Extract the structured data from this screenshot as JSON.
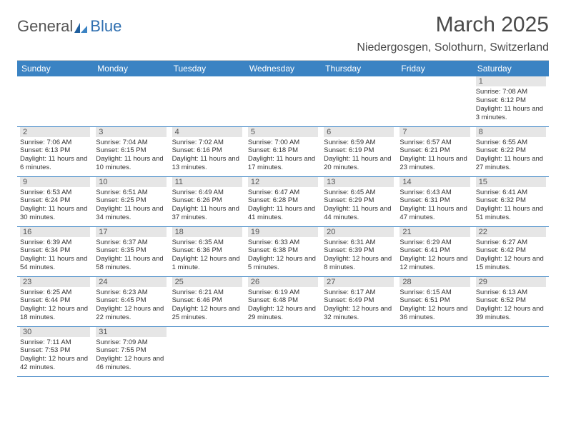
{
  "brand": {
    "first": "General",
    "second": "Blue"
  },
  "title": "March 2025",
  "location": "Niedergosgen, Solothurn, Switzerland",
  "colors": {
    "header_bg": "#3b83c3",
    "header_text": "#ffffff",
    "daynum_bg": "#e6e6e6",
    "border": "#3b83c3",
    "text": "#333333",
    "brand_gray": "#555555",
    "brand_blue": "#2f6fb0"
  },
  "weekdays": [
    "Sunday",
    "Monday",
    "Tuesday",
    "Wednesday",
    "Thursday",
    "Friday",
    "Saturday"
  ],
  "weeks": [
    [
      null,
      null,
      null,
      null,
      null,
      null,
      {
        "n": "1",
        "sunrise": "Sunrise: 7:08 AM",
        "sunset": "Sunset: 6:12 PM",
        "daylight": "Daylight: 11 hours and 3 minutes."
      }
    ],
    [
      {
        "n": "2",
        "sunrise": "Sunrise: 7:06 AM",
        "sunset": "Sunset: 6:13 PM",
        "daylight": "Daylight: 11 hours and 6 minutes."
      },
      {
        "n": "3",
        "sunrise": "Sunrise: 7:04 AM",
        "sunset": "Sunset: 6:15 PM",
        "daylight": "Daylight: 11 hours and 10 minutes."
      },
      {
        "n": "4",
        "sunrise": "Sunrise: 7:02 AM",
        "sunset": "Sunset: 6:16 PM",
        "daylight": "Daylight: 11 hours and 13 minutes."
      },
      {
        "n": "5",
        "sunrise": "Sunrise: 7:00 AM",
        "sunset": "Sunset: 6:18 PM",
        "daylight": "Daylight: 11 hours and 17 minutes."
      },
      {
        "n": "6",
        "sunrise": "Sunrise: 6:59 AM",
        "sunset": "Sunset: 6:19 PM",
        "daylight": "Daylight: 11 hours and 20 minutes."
      },
      {
        "n": "7",
        "sunrise": "Sunrise: 6:57 AM",
        "sunset": "Sunset: 6:21 PM",
        "daylight": "Daylight: 11 hours and 23 minutes."
      },
      {
        "n": "8",
        "sunrise": "Sunrise: 6:55 AM",
        "sunset": "Sunset: 6:22 PM",
        "daylight": "Daylight: 11 hours and 27 minutes."
      }
    ],
    [
      {
        "n": "9",
        "sunrise": "Sunrise: 6:53 AM",
        "sunset": "Sunset: 6:24 PM",
        "daylight": "Daylight: 11 hours and 30 minutes."
      },
      {
        "n": "10",
        "sunrise": "Sunrise: 6:51 AM",
        "sunset": "Sunset: 6:25 PM",
        "daylight": "Daylight: 11 hours and 34 minutes."
      },
      {
        "n": "11",
        "sunrise": "Sunrise: 6:49 AM",
        "sunset": "Sunset: 6:26 PM",
        "daylight": "Daylight: 11 hours and 37 minutes."
      },
      {
        "n": "12",
        "sunrise": "Sunrise: 6:47 AM",
        "sunset": "Sunset: 6:28 PM",
        "daylight": "Daylight: 11 hours and 41 minutes."
      },
      {
        "n": "13",
        "sunrise": "Sunrise: 6:45 AM",
        "sunset": "Sunset: 6:29 PM",
        "daylight": "Daylight: 11 hours and 44 minutes."
      },
      {
        "n": "14",
        "sunrise": "Sunrise: 6:43 AM",
        "sunset": "Sunset: 6:31 PM",
        "daylight": "Daylight: 11 hours and 47 minutes."
      },
      {
        "n": "15",
        "sunrise": "Sunrise: 6:41 AM",
        "sunset": "Sunset: 6:32 PM",
        "daylight": "Daylight: 11 hours and 51 minutes."
      }
    ],
    [
      {
        "n": "16",
        "sunrise": "Sunrise: 6:39 AM",
        "sunset": "Sunset: 6:34 PM",
        "daylight": "Daylight: 11 hours and 54 minutes."
      },
      {
        "n": "17",
        "sunrise": "Sunrise: 6:37 AM",
        "sunset": "Sunset: 6:35 PM",
        "daylight": "Daylight: 11 hours and 58 minutes."
      },
      {
        "n": "18",
        "sunrise": "Sunrise: 6:35 AM",
        "sunset": "Sunset: 6:36 PM",
        "daylight": "Daylight: 12 hours and 1 minute."
      },
      {
        "n": "19",
        "sunrise": "Sunrise: 6:33 AM",
        "sunset": "Sunset: 6:38 PM",
        "daylight": "Daylight: 12 hours and 5 minutes."
      },
      {
        "n": "20",
        "sunrise": "Sunrise: 6:31 AM",
        "sunset": "Sunset: 6:39 PM",
        "daylight": "Daylight: 12 hours and 8 minutes."
      },
      {
        "n": "21",
        "sunrise": "Sunrise: 6:29 AM",
        "sunset": "Sunset: 6:41 PM",
        "daylight": "Daylight: 12 hours and 12 minutes."
      },
      {
        "n": "22",
        "sunrise": "Sunrise: 6:27 AM",
        "sunset": "Sunset: 6:42 PM",
        "daylight": "Daylight: 12 hours and 15 minutes."
      }
    ],
    [
      {
        "n": "23",
        "sunrise": "Sunrise: 6:25 AM",
        "sunset": "Sunset: 6:44 PM",
        "daylight": "Daylight: 12 hours and 18 minutes."
      },
      {
        "n": "24",
        "sunrise": "Sunrise: 6:23 AM",
        "sunset": "Sunset: 6:45 PM",
        "daylight": "Daylight: 12 hours and 22 minutes."
      },
      {
        "n": "25",
        "sunrise": "Sunrise: 6:21 AM",
        "sunset": "Sunset: 6:46 PM",
        "daylight": "Daylight: 12 hours and 25 minutes."
      },
      {
        "n": "26",
        "sunrise": "Sunrise: 6:19 AM",
        "sunset": "Sunset: 6:48 PM",
        "daylight": "Daylight: 12 hours and 29 minutes."
      },
      {
        "n": "27",
        "sunrise": "Sunrise: 6:17 AM",
        "sunset": "Sunset: 6:49 PM",
        "daylight": "Daylight: 12 hours and 32 minutes."
      },
      {
        "n": "28",
        "sunrise": "Sunrise: 6:15 AM",
        "sunset": "Sunset: 6:51 PM",
        "daylight": "Daylight: 12 hours and 36 minutes."
      },
      {
        "n": "29",
        "sunrise": "Sunrise: 6:13 AM",
        "sunset": "Sunset: 6:52 PM",
        "daylight": "Daylight: 12 hours and 39 minutes."
      }
    ],
    [
      {
        "n": "30",
        "sunrise": "Sunrise: 7:11 AM",
        "sunset": "Sunset: 7:53 PM",
        "daylight": "Daylight: 12 hours and 42 minutes."
      },
      {
        "n": "31",
        "sunrise": "Sunrise: 7:09 AM",
        "sunset": "Sunset: 7:55 PM",
        "daylight": "Daylight: 12 hours and 46 minutes."
      },
      null,
      null,
      null,
      null,
      null
    ]
  ]
}
